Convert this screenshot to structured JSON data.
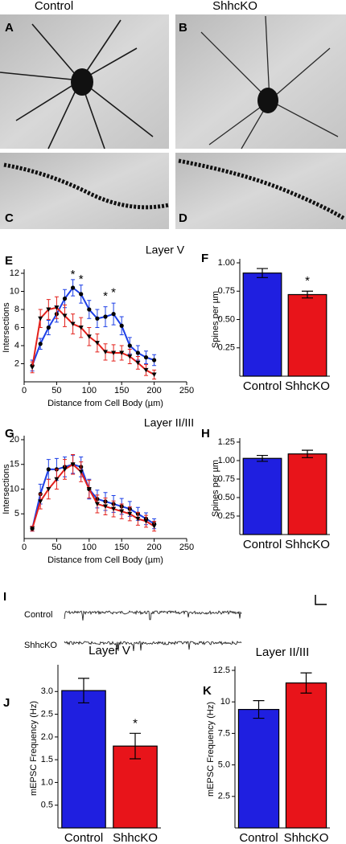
{
  "figure": {
    "columns": [
      "Control",
      "ShhcKO"
    ],
    "panels": [
      "A",
      "B",
      "C",
      "D",
      "E",
      "F",
      "G",
      "H",
      "I",
      "J",
      "K"
    ],
    "sections": [
      "Layer V",
      "Layer II/III"
    ],
    "traces": [
      "Control",
      "ShhcKO"
    ]
  },
  "chart_data": [
    {
      "type": "line",
      "xlabel": "Distance from Cell Body (µm)",
      "ylabel": "Intersections",
      "x": [
        12.5,
        25,
        37.5,
        50,
        62.5,
        75,
        87.5,
        100,
        112.5,
        125,
        137.5,
        150,
        162.5,
        175,
        187.5,
        200
      ],
      "series": [
        {
          "name": "Control",
          "color": "#1c3fe6",
          "marker": "circle",
          "values": [
            1.8,
            4.2,
            6,
            7.5,
            9.2,
            10.4,
            9.7,
            8,
            7,
            7.2,
            7.5,
            6.2,
            4,
            3.2,
            2.7,
            2.4
          ],
          "errors": [
            0.6,
            0.6,
            0.8,
            0.9,
            1,
            0.9,
            1,
            1,
            1,
            1.1,
            1.2,
            1,
            0.9,
            0.8,
            0.7,
            0.6
          ]
        },
        {
          "name": "ShhcKO",
          "color": "#e3201b",
          "marker": "triangle",
          "values": [
            1.6,
            7,
            8,
            8.2,
            7.3,
            6.4,
            6,
            5,
            4.3,
            3.3,
            3.2,
            3.2,
            2.8,
            2.1,
            1.3,
            0.8
          ],
          "errors": [
            0.6,
            1,
            1.1,
            1.2,
            1.2,
            1.1,
            1.1,
            1,
            1,
            0.9,
            0.9,
            0.8,
            0.8,
            0.7,
            0.6,
            0.5
          ]
        }
      ],
      "annotations": [
        {
          "text": "*",
          "x": 75,
          "y": 11.8
        },
        {
          "text": "*",
          "x": 87.5,
          "y": 11.3
        },
        {
          "text": "*",
          "x": 125,
          "y": 9.4
        },
        {
          "text": "*",
          "x": 137.5,
          "y": 9.8
        }
      ],
      "xlim": [
        0,
        250
      ],
      "xticks": [
        0,
        50,
        100,
        150,
        200,
        250
      ],
      "ylim": [
        0,
        12
      ],
      "yticks": [
        2,
        4,
        6,
        8,
        10,
        12
      ]
    },
    {
      "type": "bar",
      "ylabel": "Spines per µm",
      "categories": [
        "Control",
        "ShhcKO"
      ],
      "colors": [
        "#1f1fe0",
        "#e8141a"
      ],
      "values": [
        0.91,
        0.72
      ],
      "errors": [
        0.04,
        0.03
      ],
      "annotations": [
        {
          "text": "*",
          "x": "ShhcKO"
        }
      ],
      "ylim": [
        0,
        1.0
      ],
      "yticks": [
        0.25,
        {
          "value": 0.5,
          "label": "0.50"
        },
        0.75,
        {
          "value": 1.0,
          "label": "1.00"
        }
      ]
    },
    {
      "type": "line",
      "xlabel": "Distance from Cell Body (µm)",
      "ylabel": "Intersections",
      "x": [
        12.5,
        25,
        37.5,
        50,
        62.5,
        75,
        87.5,
        100,
        112.5,
        125,
        137.5,
        150,
        162.5,
        175,
        187.5,
        200
      ],
      "series": [
        {
          "name": "Control",
          "color": "#1c3fe6",
          "marker": "circle",
          "values": [
            2,
            9,
            14,
            14,
            14.5,
            15,
            14.5,
            10,
            8,
            7.5,
            7,
            6.5,
            6,
            5,
            4,
            3
          ],
          "errors": [
            0.5,
            2,
            2,
            2.2,
            2,
            1.8,
            2,
            2,
            1.8,
            1.8,
            1.7,
            1.6,
            1.5,
            1.3,
            1.2,
            1
          ]
        },
        {
          "name": "ShhcKO",
          "color": "#e3201b",
          "marker": "triangle",
          "values": [
            2,
            7.5,
            10,
            12,
            14,
            15,
            13.5,
            10,
            7,
            6.5,
            6,
            5.5,
            5,
            4,
            3.5,
            2.5
          ],
          "errors": [
            0.5,
            1.5,
            2,
            2,
            2,
            2,
            2,
            1.8,
            1.8,
            1.7,
            1.6,
            1.5,
            1.4,
            1.3,
            1.2,
            1
          ]
        }
      ],
      "xlim": [
        0,
        250
      ],
      "xticks": [
        0,
        50,
        100,
        150,
        200,
        250
      ],
      "ylim": [
        0,
        20
      ],
      "yticks": [
        5,
        10,
        15,
        20
      ]
    },
    {
      "type": "bar",
      "ylabel": "Spines per µm",
      "categories": [
        "Control",
        "ShhcKO"
      ],
      "colors": [
        "#1f1fe0",
        "#e8141a"
      ],
      "values": [
        1.03,
        1.09
      ],
      "errors": [
        0.04,
        0.05
      ],
      "ylim": [
        0,
        1.25
      ],
      "yticks": [
        0.25,
        {
          "value": 0.5,
          "label": "0.50"
        },
        0.75,
        {
          "value": 1.0,
          "label": "1.00"
        },
        1.25
      ]
    },
    {
      "type": "bar",
      "title": "Layer V",
      "ylabel": "mEPSC Frequency (Hz)",
      "categories": [
        "Control",
        "ShhcKO"
      ],
      "colors": [
        "#1f1fe0",
        "#e8141a"
      ],
      "values": [
        3.02,
        1.8
      ],
      "errors": [
        0.27,
        0.28
      ],
      "annotations": [
        {
          "text": "*",
          "x": "ShhcKO"
        }
      ],
      "ylim": [
        0,
        3.5
      ],
      "yticks": [
        0.5,
        {
          "value": 1,
          "label": "1.0"
        },
        1.5,
        {
          "value": 2,
          "label": "2.0"
        },
        2.5,
        {
          "value": 3,
          "label": "3.0"
        }
      ]
    },
    {
      "type": "bar",
      "title": "Layer II/III",
      "ylabel": "mEPSC Frequency (Hz)",
      "categories": [
        "Control",
        "ShhcKO"
      ],
      "colors": [
        "#1f1fe0",
        "#e8141a"
      ],
      "values": [
        9.4,
        11.5
      ],
      "errors": [
        0.7,
        0.8
      ],
      "ylim": [
        0,
        12.5
      ],
      "yticks": [
        2.5,
        {
          "value": 5,
          "label": "5.0"
        },
        7.5,
        10,
        12.5
      ]
    }
  ]
}
